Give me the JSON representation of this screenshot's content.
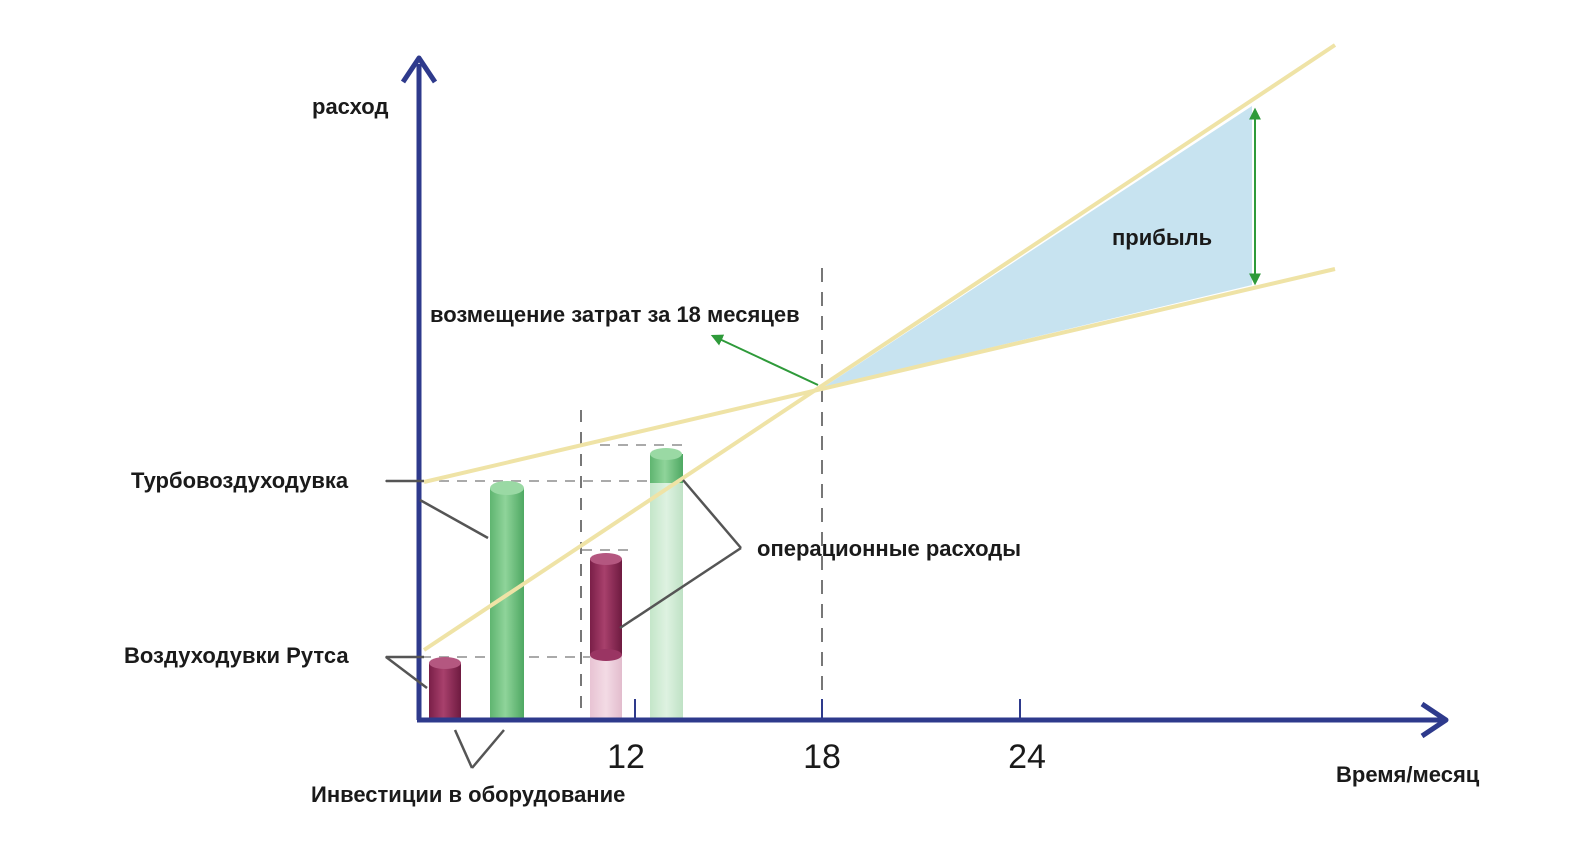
{
  "labels": {
    "y_axis": "расход",
    "x_axis": "Время/месяц",
    "profit": "прибыль",
    "payback": "возмещение затрат за 18 месяцев",
    "turbo_blower": "Турбовоздуходувка",
    "roots_blowers": "Воздуходувки Рутса",
    "operating_costs": "операционные расходы",
    "equipment_investment": "Инвестиции в оборудование"
  },
  "ticks": [
    "12",
    "18",
    "24"
  ],
  "colors": {
    "axis": "#2e3a8c",
    "cost_lines": "#efe3a6",
    "profit_fill": "#c7e3f0",
    "arrow": "#2e9a3a",
    "green_cylinder": "#6cc07a",
    "red_cylinder": "#8c2a55",
    "dashed": "#999999",
    "leader": "#555555"
  }
}
